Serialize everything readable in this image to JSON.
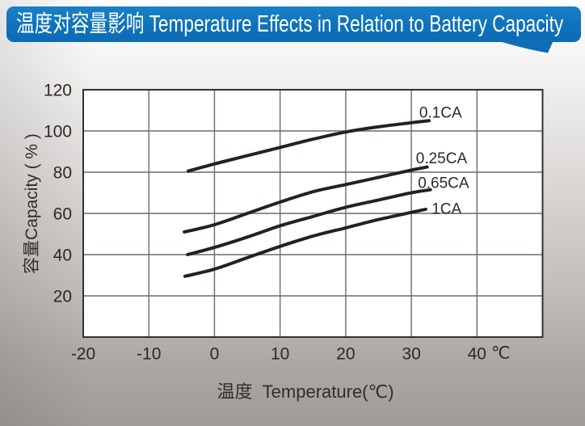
{
  "header": {
    "title": "温度对容量影响 Temperature Effects in Relation to Battery Capacity",
    "banner_color": "#0e72bb"
  },
  "chart_data": {
    "type": "line",
    "title": "温度对容量影响 Temperature Effects in Relation to Battery Capacity",
    "xlabel": "温度  Temperature(℃)",
    "ylabel": "容量Capacity ( % )",
    "x_unit_label": "℃",
    "xlim": [
      -20,
      50
    ],
    "ylim": [
      0,
      120
    ],
    "x_ticks": [
      -20,
      -10,
      0,
      10,
      20,
      30,
      40
    ],
    "y_ticks": [
      120,
      100,
      80,
      60,
      40,
      20
    ],
    "grid": true,
    "legend_position": "inline-labels-right-of-curves",
    "line_color": "#26211f",
    "grid_color": "#6f6a67",
    "plot_bg": "#ffffff",
    "series": [
      {
        "name": "0.1CA",
        "points": [
          [
            -4,
            80.5
          ],
          [
            0,
            84
          ],
          [
            5,
            88
          ],
          [
            10,
            92
          ],
          [
            15,
            96
          ],
          [
            20,
            99.5
          ],
          [
            25,
            102
          ],
          [
            30,
            104
          ],
          [
            32.7,
            105
          ]
        ],
        "label_pos": [
          31.2,
          109
        ]
      },
      {
        "name": "0.25CA",
        "points": [
          [
            -4.6,
            51
          ],
          [
            0,
            54.5
          ],
          [
            5,
            60
          ],
          [
            10,
            65.5
          ],
          [
            15,
            70.5
          ],
          [
            20,
            74
          ],
          [
            25,
            77.5
          ],
          [
            30,
            81
          ],
          [
            32.4,
            82.5
          ]
        ],
        "label_pos": [
          30.7,
          87
        ]
      },
      {
        "name": "0.65CA",
        "points": [
          [
            -4.1,
            40
          ],
          [
            0,
            43.5
          ],
          [
            5,
            48.5
          ],
          [
            10,
            54
          ],
          [
            15,
            58.5
          ],
          [
            20,
            63
          ],
          [
            25,
            66.5
          ],
          [
            30,
            70
          ],
          [
            32.9,
            71.5
          ]
        ],
        "label_pos": [
          31.0,
          75
        ]
      },
      {
        "name": "1CA",
        "points": [
          [
            -4.5,
            29.5
          ],
          [
            0,
            33
          ],
          [
            5,
            38.5
          ],
          [
            10,
            44
          ],
          [
            15,
            49
          ],
          [
            20,
            53
          ],
          [
            25,
            57
          ],
          [
            30,
            60.5
          ],
          [
            32.2,
            62
          ]
        ],
        "label_pos": [
          33.1,
          62.4
        ]
      }
    ]
  }
}
